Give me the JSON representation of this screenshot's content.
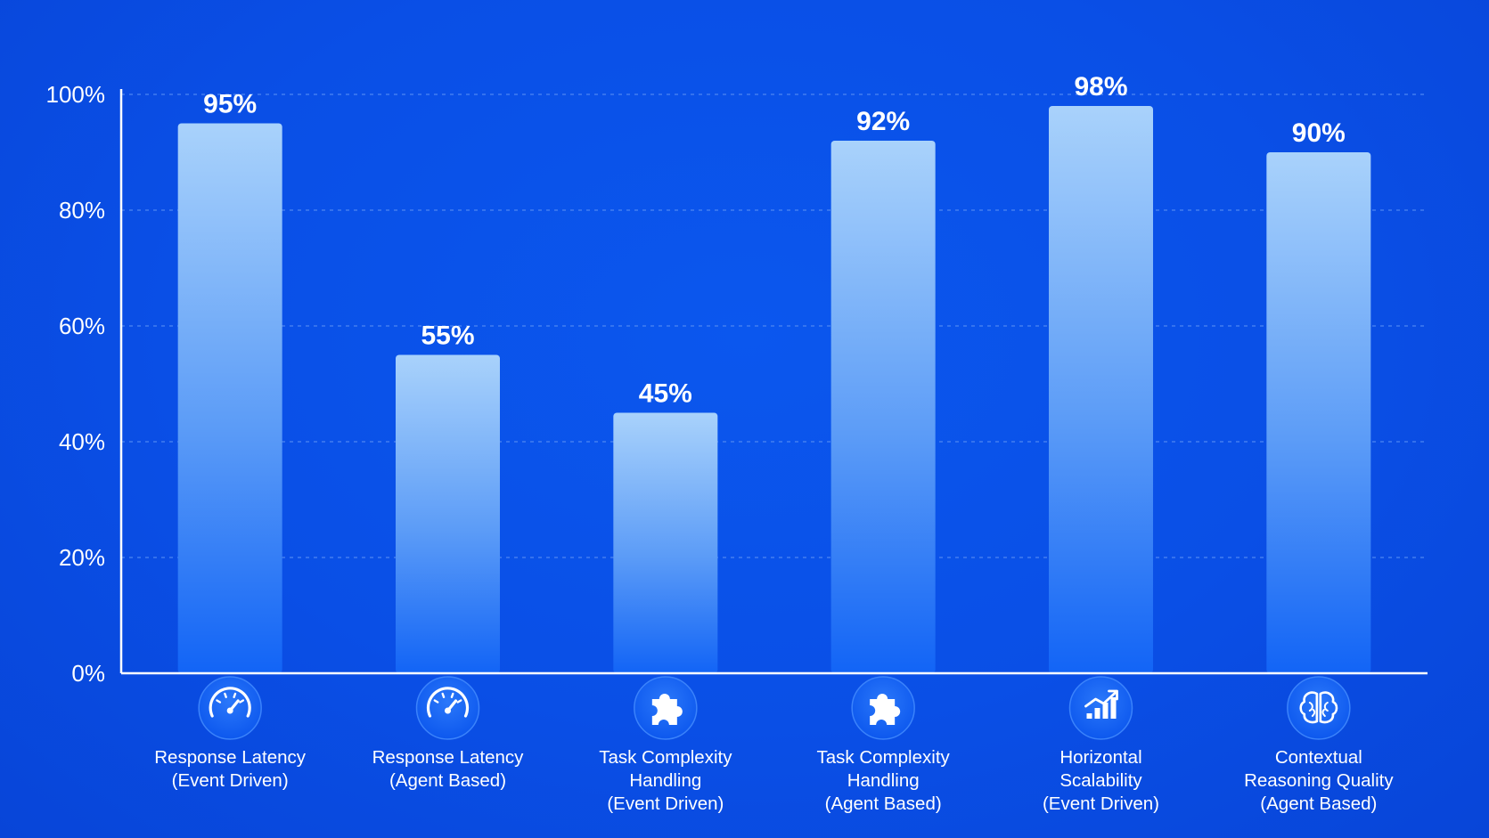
{
  "chart_data": {
    "type": "bar",
    "title": "",
    "xlabel": "",
    "ylabel": "",
    "ylim": [
      0,
      100
    ],
    "yticks": [
      "0%",
      "20%",
      "40%",
      "60%",
      "80%",
      "100%"
    ],
    "grid": true,
    "categories": [
      [
        "Response Latency",
        "(Event Driven)"
      ],
      [
        "Response Latency",
        "(Agent Based)"
      ],
      [
        "Task Complexity",
        "Handling",
        "(Event Driven)"
      ],
      [
        "Task Complexity",
        "Handling",
        "(Agent Based)"
      ],
      [
        "Horizontal",
        "Scalability",
        "(Event Driven)"
      ],
      [
        "Contextual",
        "Reasoning Quality",
        "(Agent Based)"
      ]
    ],
    "values": [
      95,
      55,
      45,
      92,
      98,
      90
    ],
    "value_labels": [
      "95%",
      "55%",
      "45%",
      "92%",
      "98%",
      "90%"
    ],
    "icons": [
      "speedometer-icon",
      "speedometer-icon",
      "puzzle-icon",
      "puzzle-icon",
      "growth-chart-icon",
      "brain-icon"
    ],
    "colors": {
      "background": "#0a4fe6",
      "bar_top": "#a9d2fb",
      "bar_bottom": "#1264f6",
      "axis": "#ffffff",
      "grid": "#4d86f2",
      "icon_circle": "#1565f8"
    }
  }
}
